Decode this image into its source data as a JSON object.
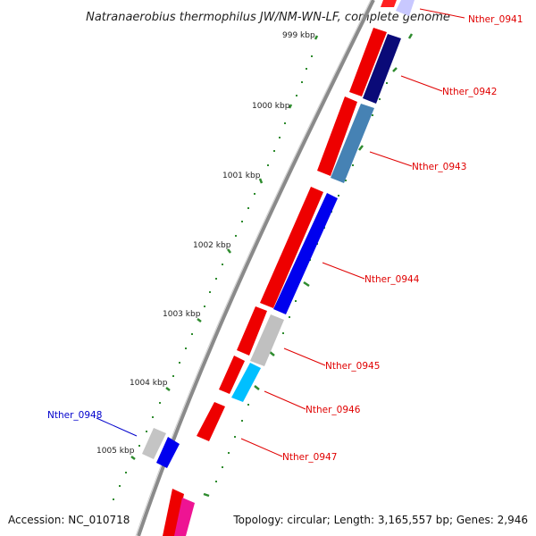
{
  "title": "Natranaerobius thermophilus JW/NM-WN-LF, complete genome",
  "footer": {
    "accession": "Accession: NC_010718",
    "summary": "Topology: circular; Length: 3,165,557 bp; Genes: 2,946"
  },
  "colors": {
    "backbone": "#8a8a8a",
    "tick": "#2e8b2e",
    "label_red": "#e00000",
    "label_blue": "#0000cc",
    "scale_text": "#222222"
  },
  "scale_labels": [
    "999 kbp",
    "1000 kbp",
    "1001 kbp",
    "1002 kbp",
    "1003 kbp",
    "1004 kbp",
    "1005 kbp"
  ],
  "genes": [
    {
      "id": "Nther_0941",
      "color": "#c8c8ff",
      "lane": "outer"
    },
    {
      "id": "Nther_0942",
      "color": "#0a0a78",
      "lane": "outer"
    },
    {
      "id": "Nther_0943",
      "color": "#4682b4",
      "lane": "outer"
    },
    {
      "id": "Nther_0944",
      "color": "#0000ee",
      "lane": "outer"
    },
    {
      "id": "Nther_0945",
      "color": "#c0c0c0",
      "lane": "outer"
    },
    {
      "id": "Nther_0946",
      "color": "#00bfff",
      "lane": "outer"
    },
    {
      "id": "Nther_0947",
      "color": "#ee0000",
      "lane": "inner"
    },
    {
      "id": "Nther_0948",
      "color": "#0000ee",
      "lane": "outer"
    }
  ]
}
